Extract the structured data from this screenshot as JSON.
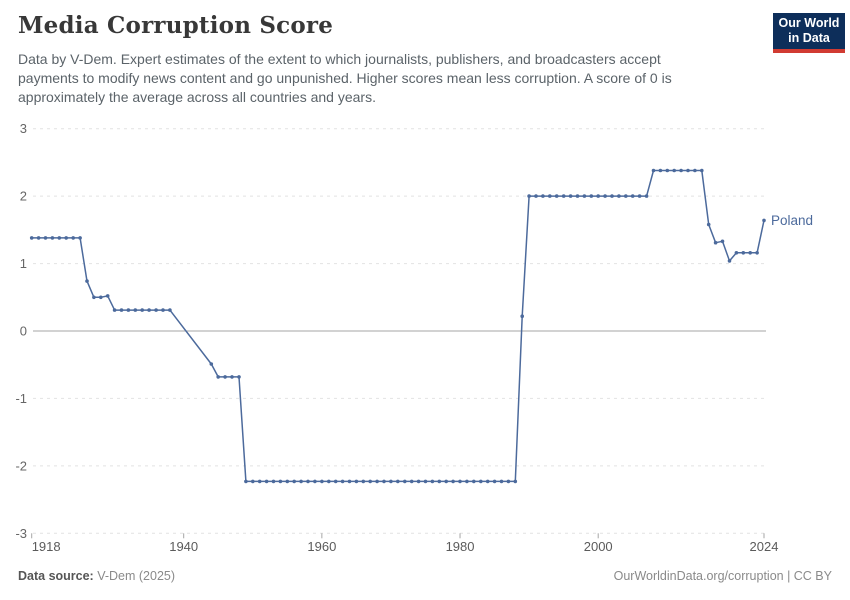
{
  "header": {
    "title": "Media Corruption Score",
    "subtitle": "Data by V-Dem. Expert estimates of the extent to which journalists, publishers, and broadcasters accept payments to modify news content and go unpunished. Higher scores mean less corruption. A score of 0 is approximately the average across all countries and years.",
    "logo": {
      "line1": "Our World",
      "line2": "in Data",
      "bg_color": "#0d2e5a",
      "accent_color": "#d13b32"
    }
  },
  "footer": {
    "source_label": "Data source:",
    "source_value": "V-Dem (2025)",
    "credit": "OurWorldinData.org/corruption | CC BY"
  },
  "chart_data": {
    "type": "line",
    "title": "Media Corruption Score",
    "xlabel": "",
    "ylabel": "",
    "xlim": [
      1918,
      2024
    ],
    "ylim": [
      -3,
      3
    ],
    "x_ticks": [
      1918,
      1940,
      1960,
      1980,
      2000,
      2024
    ],
    "y_ticks": [
      3,
      2,
      1,
      0,
      -1,
      -2,
      -3
    ],
    "grid": "dashed horizontal, solid zero line",
    "legend_position": "end-of-line label",
    "missing_years": [
      1939,
      1940,
      1941,
      1942,
      1943
    ],
    "colors": {
      "line": "#4c6a9c",
      "grid": "#e2e2e2",
      "zero_line": "#a6a6a6",
      "tick": "#a6a6a6",
      "axis_text_y": "#666666",
      "axis_text_x": "#5b5b5b"
    },
    "series": [
      {
        "name": "Poland",
        "points": [
          [
            1918,
            1.38
          ],
          [
            1919,
            1.38
          ],
          [
            1920,
            1.38
          ],
          [
            1921,
            1.38
          ],
          [
            1922,
            1.38
          ],
          [
            1923,
            1.38
          ],
          [
            1924,
            1.38
          ],
          [
            1925,
            1.38
          ],
          [
            1926,
            0.74
          ],
          [
            1927,
            0.5
          ],
          [
            1928,
            0.5
          ],
          [
            1929,
            0.52
          ],
          [
            1930,
            0.31
          ],
          [
            1931,
            0.31
          ],
          [
            1932,
            0.31
          ],
          [
            1933,
            0.31
          ],
          [
            1934,
            0.31
          ],
          [
            1935,
            0.31
          ],
          [
            1936,
            0.31
          ],
          [
            1937,
            0.31
          ],
          [
            1938,
            0.31
          ],
          [
            1944,
            -0.49
          ],
          [
            1945,
            -0.68
          ],
          [
            1946,
            -0.68
          ],
          [
            1947,
            -0.68
          ],
          [
            1948,
            -0.68
          ],
          [
            1949,
            -2.23
          ],
          [
            1950,
            -2.23
          ],
          [
            1951,
            -2.23
          ],
          [
            1952,
            -2.23
          ],
          [
            1953,
            -2.23
          ],
          [
            1954,
            -2.23
          ],
          [
            1955,
            -2.23
          ],
          [
            1956,
            -2.23
          ],
          [
            1957,
            -2.23
          ],
          [
            1958,
            -2.23
          ],
          [
            1959,
            -2.23
          ],
          [
            1960,
            -2.23
          ],
          [
            1961,
            -2.23
          ],
          [
            1962,
            -2.23
          ],
          [
            1963,
            -2.23
          ],
          [
            1964,
            -2.23
          ],
          [
            1965,
            -2.23
          ],
          [
            1966,
            -2.23
          ],
          [
            1967,
            -2.23
          ],
          [
            1968,
            -2.23
          ],
          [
            1969,
            -2.23
          ],
          [
            1970,
            -2.23
          ],
          [
            1971,
            -2.23
          ],
          [
            1972,
            -2.23
          ],
          [
            1973,
            -2.23
          ],
          [
            1974,
            -2.23
          ],
          [
            1975,
            -2.23
          ],
          [
            1976,
            -2.23
          ],
          [
            1977,
            -2.23
          ],
          [
            1978,
            -2.23
          ],
          [
            1979,
            -2.23
          ],
          [
            1980,
            -2.23
          ],
          [
            1981,
            -2.23
          ],
          [
            1982,
            -2.23
          ],
          [
            1983,
            -2.23
          ],
          [
            1984,
            -2.23
          ],
          [
            1985,
            -2.23
          ],
          [
            1986,
            -2.23
          ],
          [
            1987,
            -2.23
          ],
          [
            1988,
            -2.23
          ],
          [
            1989,
            0.22
          ],
          [
            1990,
            2
          ],
          [
            1991,
            2
          ],
          [
            1992,
            2
          ],
          [
            1993,
            2
          ],
          [
            1994,
            2
          ],
          [
            1995,
            2
          ],
          [
            1996,
            2
          ],
          [
            1997,
            2
          ],
          [
            1998,
            2
          ],
          [
            1999,
            2
          ],
          [
            2000,
            2
          ],
          [
            2001,
            2
          ],
          [
            2002,
            2
          ],
          [
            2003,
            2
          ],
          [
            2004,
            2
          ],
          [
            2005,
            2
          ],
          [
            2006,
            2
          ],
          [
            2007,
            2
          ],
          [
            2008,
            2.38
          ],
          [
            2009,
            2.38
          ],
          [
            2010,
            2.38
          ],
          [
            2011,
            2.38
          ],
          [
            2012,
            2.38
          ],
          [
            2013,
            2.38
          ],
          [
            2014,
            2.38
          ],
          [
            2015,
            2.38
          ],
          [
            2016,
            1.58
          ],
          [
            2017,
            1.31
          ],
          [
            2018,
            1.33
          ],
          [
            2019,
            1.04
          ],
          [
            2020,
            1.16
          ],
          [
            2021,
            1.16
          ],
          [
            2022,
            1.16
          ],
          [
            2023,
            1.16
          ],
          [
            2024,
            1.64
          ]
        ]
      }
    ]
  }
}
